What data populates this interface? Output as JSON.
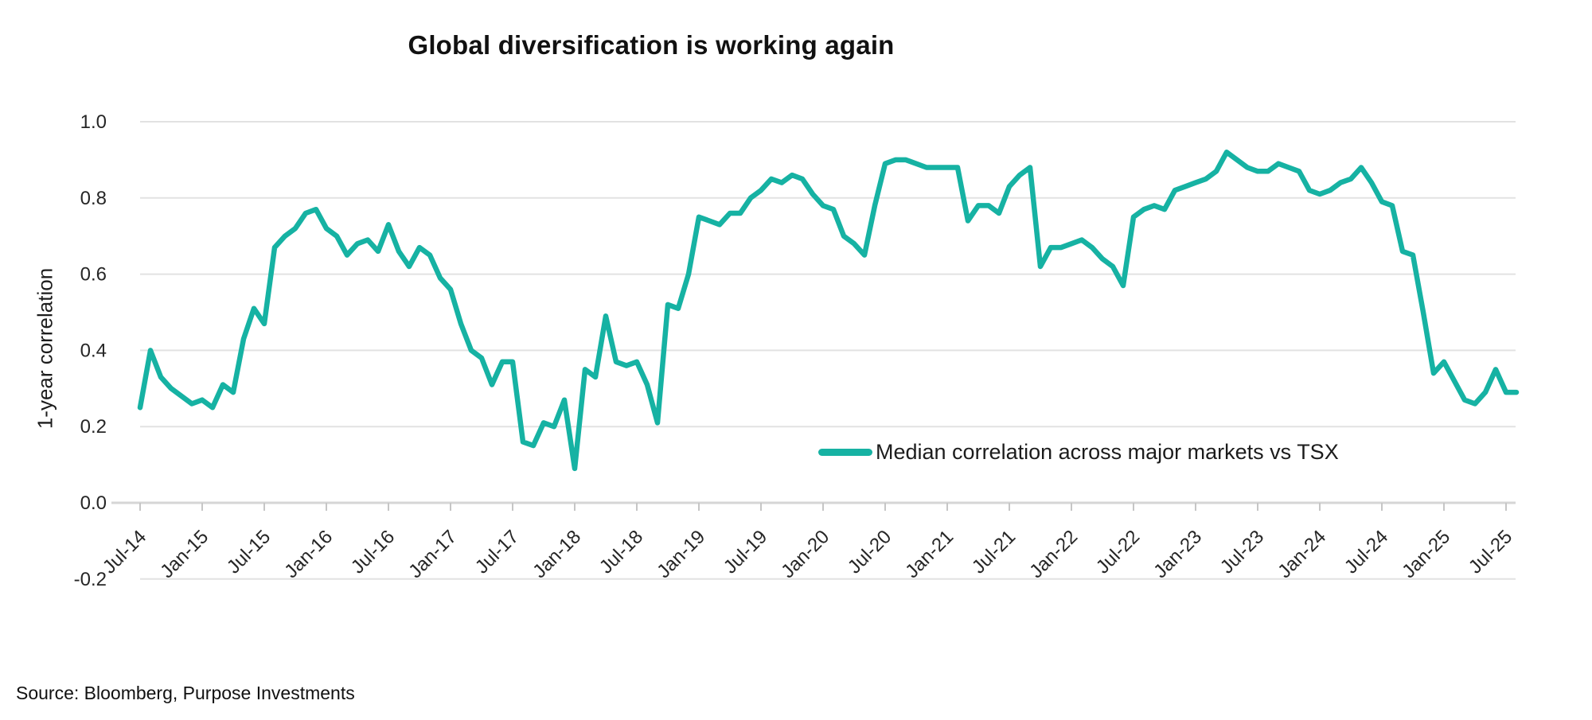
{
  "source_note": "Source: Bloomberg, Purpose Investments",
  "colors": {
    "line": "#16b2a3",
    "gridline": "#e2e2e2",
    "axis_line": "#d6d6d6",
    "tick_mark": "#c6c6c6",
    "tick_text": "#262626",
    "title_text": "#111111"
  },
  "chart_data": {
    "type": "line",
    "title": "Global diversification is working again",
    "xlabel": "",
    "ylabel": "1-year correlation",
    "ylim": [
      -0.2,
      1.0
    ],
    "grid": true,
    "legend_position": "center-right inside plot",
    "x_frequency": "monthly",
    "x_start": "Jul-2014",
    "x_end": "Aug-2025",
    "x_tick_labels": [
      "Jul-14",
      "Jan-15",
      "Jul-15",
      "Jan-16",
      "Jul-16",
      "Jan-17",
      "Jul-17",
      "Jan-18",
      "Jul-18",
      "Jan-19",
      "Jul-19",
      "Jan-20",
      "Jul-20",
      "Jan-21",
      "Jul-21",
      "Jan-22",
      "Jul-22",
      "Jan-23",
      "Jul-23",
      "Jan-24",
      "Jul-24",
      "Jan-25",
      "Jul-25"
    ],
    "y_ticks": [
      {
        "label": "1.0",
        "value": 1.0
      },
      {
        "label": "0.8",
        "value": 0.8
      },
      {
        "label": "0.6",
        "value": 0.6
      },
      {
        "label": "0.4",
        "value": 0.4
      },
      {
        "label": "0.2",
        "value": 0.2
      },
      {
        "label": "0.0",
        "value": 0.0
      },
      {
        "label": "-0.2",
        "value": -0.2
      }
    ],
    "series": [
      {
        "name": "Median correlation across major markets vs TSX",
        "color": "#16b2a3",
        "values": [
          0.25,
          0.4,
          0.33,
          0.3,
          0.28,
          0.26,
          0.27,
          0.25,
          0.31,
          0.29,
          0.43,
          0.51,
          0.47,
          0.67,
          0.7,
          0.72,
          0.76,
          0.77,
          0.72,
          0.7,
          0.65,
          0.68,
          0.69,
          0.66,
          0.73,
          0.66,
          0.62,
          0.67,
          0.65,
          0.59,
          0.56,
          0.47,
          0.4,
          0.38,
          0.31,
          0.37,
          0.37,
          0.16,
          0.15,
          0.21,
          0.2,
          0.27,
          0.09,
          0.35,
          0.33,
          0.49,
          0.37,
          0.36,
          0.37,
          0.31,
          0.21,
          0.52,
          0.51,
          0.6,
          0.75,
          0.74,
          0.73,
          0.76,
          0.76,
          0.8,
          0.82,
          0.85,
          0.84,
          0.86,
          0.85,
          0.81,
          0.78,
          0.77,
          0.7,
          0.68,
          0.65,
          0.78,
          0.89,
          0.9,
          0.9,
          0.89,
          0.88,
          0.88,
          0.88,
          0.88,
          0.74,
          0.78,
          0.78,
          0.76,
          0.83,
          0.86,
          0.88,
          0.62,
          0.67,
          0.67,
          0.68,
          0.69,
          0.67,
          0.64,
          0.62,
          0.57,
          0.75,
          0.77,
          0.78,
          0.77,
          0.82,
          0.83,
          0.84,
          0.85,
          0.87,
          0.92,
          0.9,
          0.88,
          0.87,
          0.87,
          0.89,
          0.88,
          0.87,
          0.82,
          0.81,
          0.82,
          0.84,
          0.85,
          0.88,
          0.84,
          0.79,
          0.78,
          0.66,
          0.65,
          0.5,
          0.34,
          0.37,
          0.32,
          0.27,
          0.26,
          0.29,
          0.35,
          0.29,
          0.29
        ]
      }
    ]
  }
}
